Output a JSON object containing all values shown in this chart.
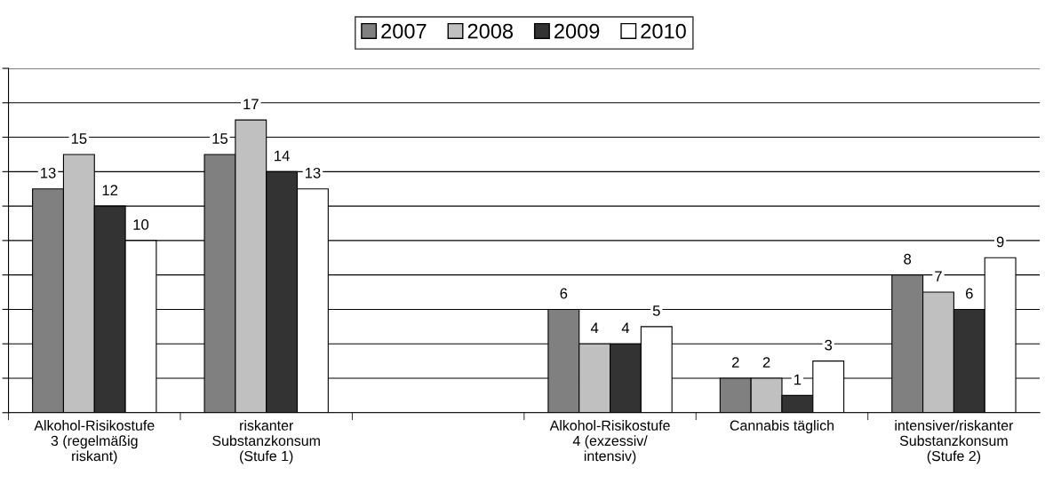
{
  "chart_data": {
    "type": "bar",
    "categories": [
      "Alkohol-Risikostufe\n3 (regelmäßig\nriskant)",
      "riskanter\nSubstanzkonsum\n(Stufe 1)",
      null,
      "Alkohol-Risikostufe\n4 (exzessiv/\nintensiv)",
      "Cannabis täglich",
      "intensiver/riskanter\nSubstanzkonsum\n(Stufe 2)"
    ],
    "series": [
      {
        "name": "2007",
        "color": "#808080",
        "values": [
          13,
          15,
          null,
          6,
          2,
          8
        ]
      },
      {
        "name": "2008",
        "color": "#c0c0c0",
        "values": [
          15,
          17,
          null,
          4,
          2,
          7
        ]
      },
      {
        "name": "2009",
        "color": "#333333",
        "values": [
          12,
          14,
          null,
          4,
          1,
          6
        ]
      },
      {
        "name": "2010",
        "color": "#ffffff",
        "values": [
          10,
          13,
          null,
          5,
          3,
          9
        ]
      }
    ],
    "ylim": [
      0,
      20
    ],
    "yticks": [
      {
        "value": 0,
        "label": null
      },
      {
        "value": 2,
        "label": null
      },
      {
        "value": 4,
        "label": null
      },
      {
        "value": 6,
        "label": null
      },
      {
        "value": 8,
        "label": null
      },
      {
        "value": 10,
        "label": null
      },
      {
        "value": 12,
        "label": null
      },
      {
        "value": 14,
        "label": null
      },
      {
        "value": 16,
        "label": null
      },
      {
        "value": 18,
        "label": null
      },
      {
        "value": 20,
        "label": null
      }
    ],
    "tick_labels": "x",
    "grid": "y",
    "legend": "top",
    "data_labels": true
  }
}
